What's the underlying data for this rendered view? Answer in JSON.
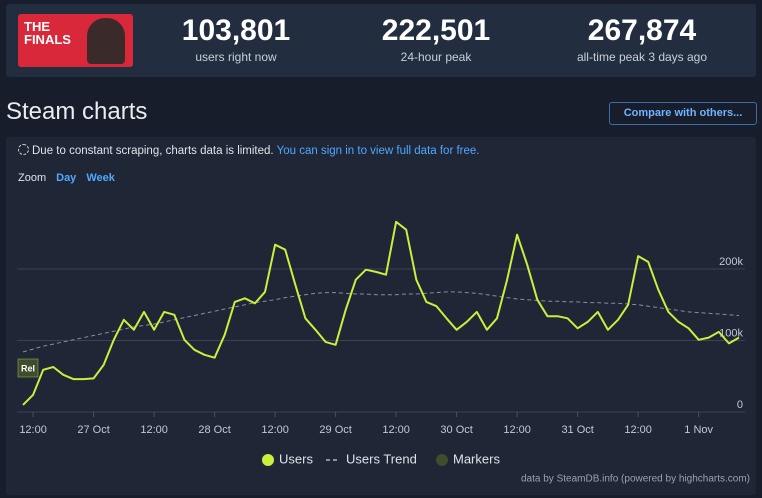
{
  "header": {
    "game": "THE FINALS",
    "stats": [
      {
        "value": "103,801",
        "label": "users right now"
      },
      {
        "value": "222,501",
        "label": "24-hour peak"
      },
      {
        "value": "267,874",
        "label": "all-time peak 3 days ago"
      }
    ]
  },
  "section_title": "Steam charts",
  "compare_button": "Compare with others...",
  "notice": "Due to constant scraping, charts data is limited.",
  "notice_link": "You can sign in to view full data for free.",
  "zoom": {
    "label": "Zoom",
    "options": [
      "Day",
      "Week"
    ]
  },
  "credit": "data by SteamDB.info (powered by highcharts.com)",
  "chart_data": {
    "type": "line",
    "categories": [
      null,
      "12:00",
      null,
      null,
      null,
      null,
      null,
      "27 Oct",
      null,
      null,
      null,
      null,
      null,
      "12:00",
      null,
      null,
      null,
      null,
      null,
      "28 Oct",
      null,
      null,
      null,
      null,
      null,
      "12:00",
      null,
      null,
      null,
      null,
      null,
      "29 Oct",
      null,
      null,
      null,
      null,
      null,
      "12:00",
      null,
      null,
      null,
      null,
      null,
      "30 Oct",
      null,
      null,
      null,
      null,
      null,
      "12:00",
      null,
      null,
      null,
      null,
      null,
      "31 Oct",
      null,
      null,
      null,
      null,
      null,
      "12:00",
      null,
      null,
      null,
      null,
      null,
      "1 Nov",
      null,
      null,
      null,
      null
    ],
    "series": [
      {
        "name": "Users",
        "color": "#c8f03c",
        "values": [
          10000,
          24000,
          59000,
          63000,
          52000,
          46000,
          46000,
          47000,
          66000,
          101000,
          129000,
          115000,
          140000,
          115000,
          140000,
          136000,
          101000,
          87000,
          80000,
          76000,
          108000,
          154000,
          159000,
          152000,
          168000,
          234000,
          227000,
          178000,
          131000,
          115000,
          98000,
          94000,
          143000,
          185000,
          199000,
          196000,
          192000,
          266000,
          255000,
          185000,
          154000,
          148000,
          131000,
          115000,
          126000,
          140000,
          115000,
          131000,
          185000,
          248000,
          206000,
          157000,
          134000,
          134000,
          131000,
          117000,
          126000,
          140000,
          115000,
          129000,
          150000,
          218000,
          210000,
          171000,
          140000,
          126000,
          117000,
          101000,
          104000,
          112000,
          96000,
          104000
        ]
      },
      {
        "name": "Users Trend",
        "color": "#8a8f99",
        "dashed": true,
        "values": [
          84000,
          88000,
          92000,
          95000,
          98000,
          101000,
          104000,
          107000,
          110000,
          113000,
          116000,
          119000,
          121000,
          123000,
          126000,
          129000,
          132000,
          135000,
          138000,
          141000,
          144000,
          147000,
          150000,
          153000,
          155000,
          157000,
          160000,
          162000,
          164000,
          166000,
          167000,
          167000,
          166000,
          165000,
          165000,
          164000,
          164000,
          164000,
          165000,
          165000,
          166000,
          167000,
          168000,
          168000,
          167000,
          166000,
          164000,
          162000,
          160000,
          158000,
          157000,
          156000,
          155000,
          155000,
          154000,
          154000,
          153000,
          153000,
          152000,
          152000,
          151000,
          150000,
          148000,
          146000,
          144000,
          142000,
          140000,
          139000,
          138000,
          137000,
          136000,
          135000
        ]
      }
    ],
    "markers": {
      "name": "Markers",
      "color": "#3f4d2c",
      "items": [
        "Rel"
      ]
    },
    "ylim": [
      0,
      300000
    ],
    "yticks": [
      0,
      {
        "value": 100000,
        "label": "100k"
      },
      {
        "value": 200000,
        "label": "200k"
      }
    ],
    "grid": true
  }
}
